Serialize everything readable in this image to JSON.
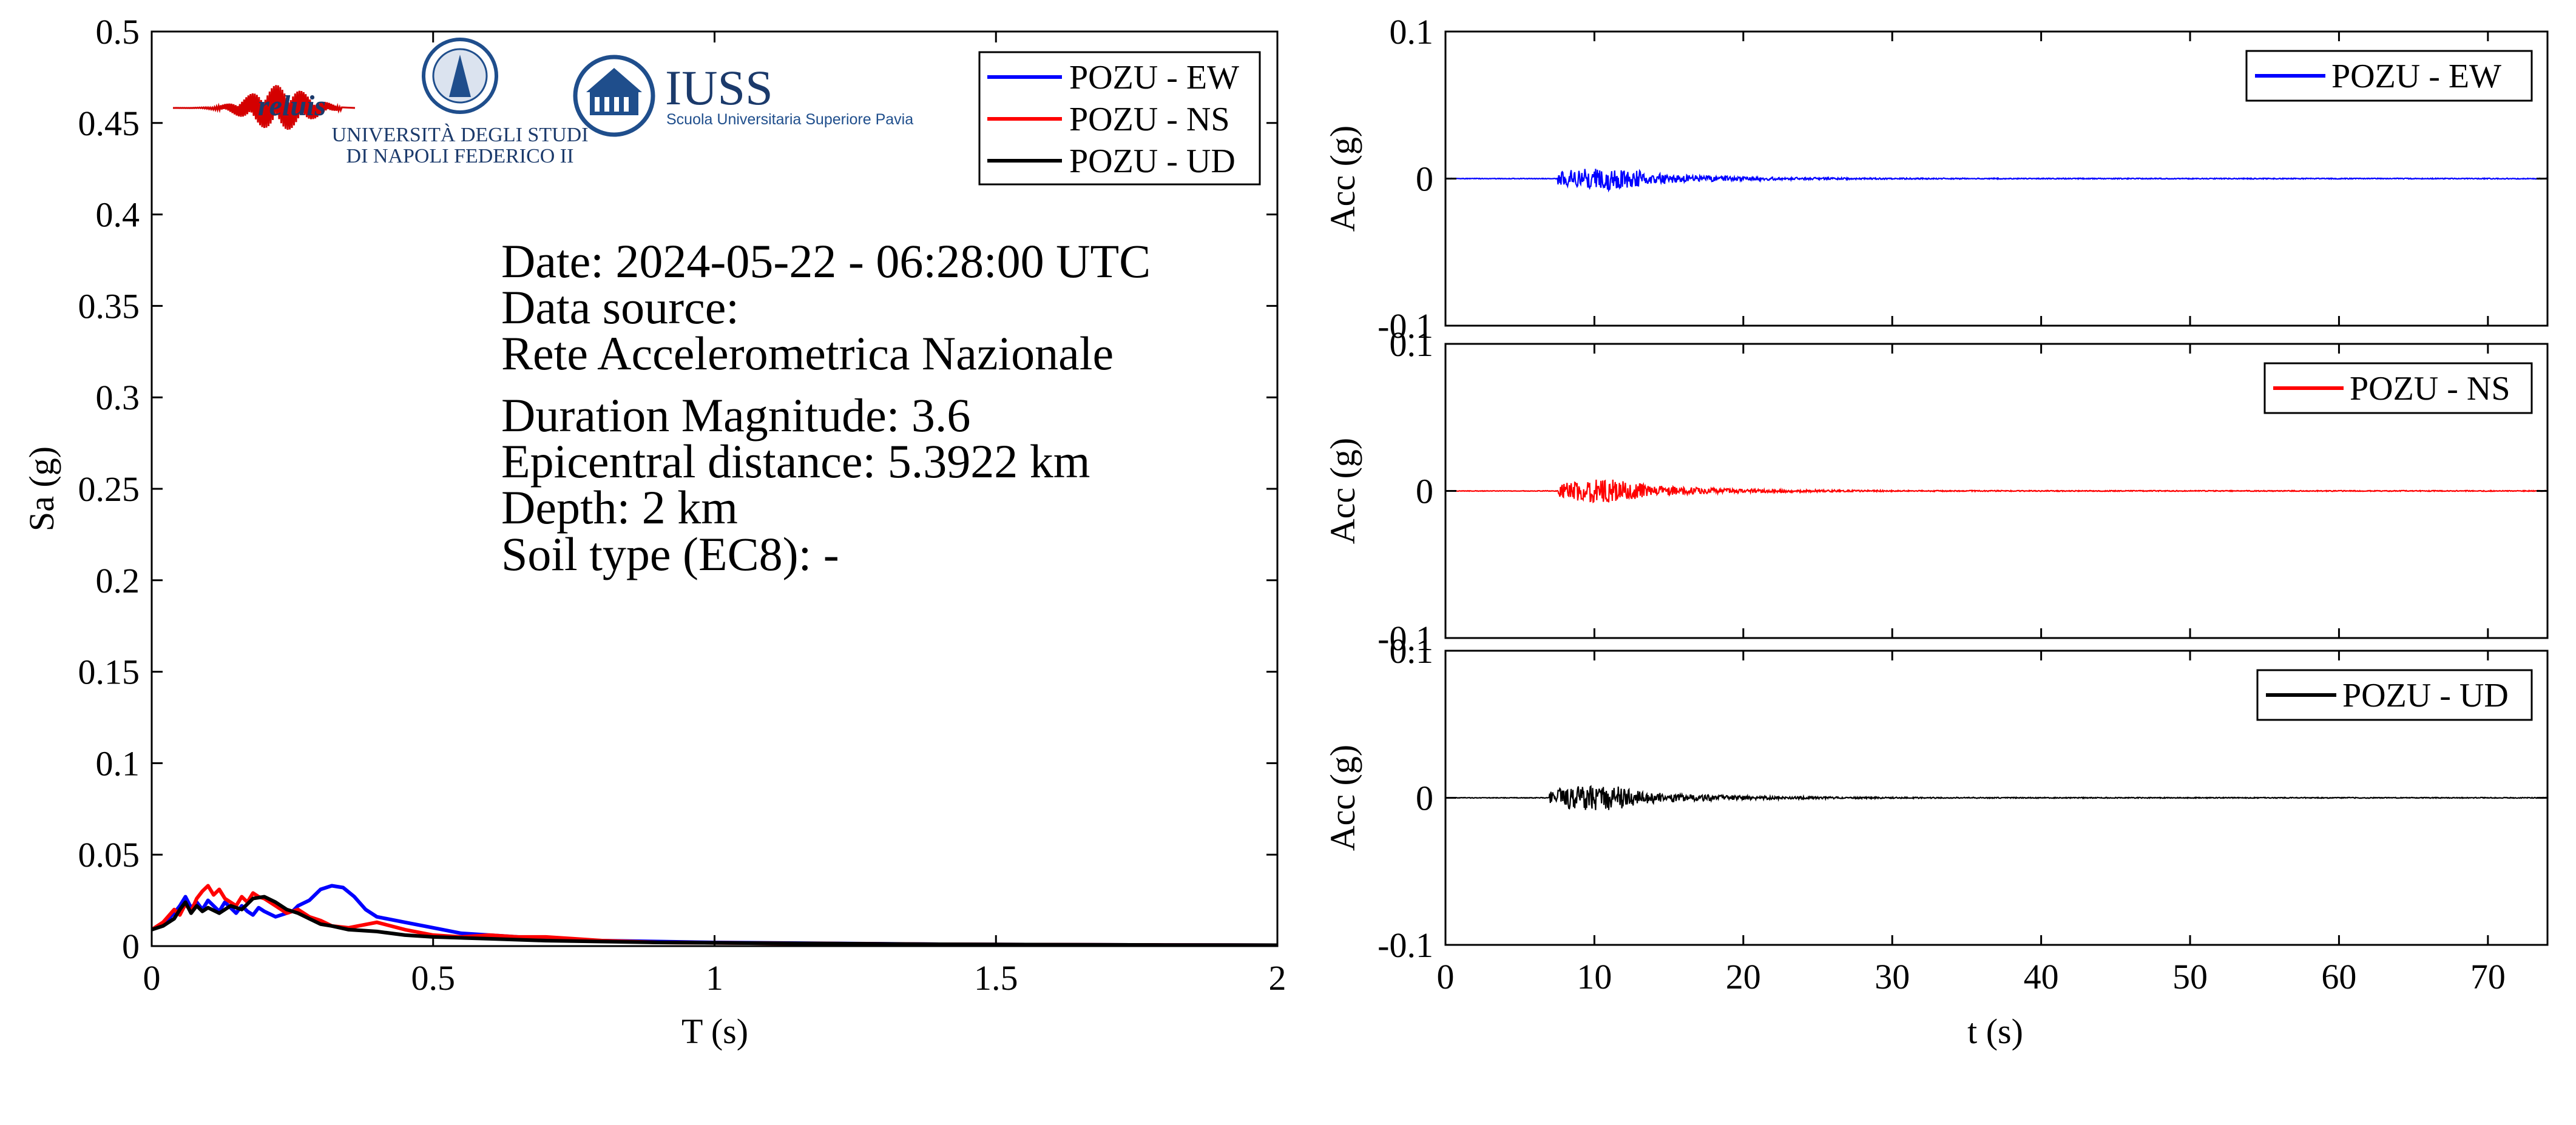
{
  "colors": {
    "ew": "#0000ff",
    "ns": "#ff0000",
    "ud": "#000000",
    "logo_blue": "#1f4e8c",
    "logo_red": "#d40000"
  },
  "logos": {
    "reluis": "reluis",
    "unina_line1": "UNIVERSITÀ DEGLI STUDI",
    "unina_line2": "DI NAPOLI FEDERICO II",
    "iuss_title": "IUSS",
    "iuss_sub": "Scuola Universitaria Superiore Pavia"
  },
  "info": {
    "date": "Date: 2024-05-22 - 06:28:00 UTC",
    "source_label": "Data source:",
    "source": "Rete Accelerometrica Nazionale",
    "magnitude": "Duration Magnitude: 3.6",
    "distance": "Epicentral distance: 5.3922 km",
    "depth": "Depth: 2 km",
    "soil": "Soil type (EC8): -"
  },
  "chart_data": [
    {
      "type": "line",
      "xlabel": "T (s)",
      "ylabel": "Sa (g)",
      "xlim": [
        0,
        2
      ],
      "ylim": [
        0,
        0.5
      ],
      "xticks": [
        "0",
        "0.5",
        "1",
        "1.5",
        "2"
      ],
      "yticks": [
        "0",
        "0.05",
        "0.1",
        "0.15",
        "0.2",
        "0.25",
        "0.3",
        "0.35",
        "0.4",
        "0.45",
        "0.5"
      ],
      "legend": "top-right",
      "series": [
        {
          "name": "POZU - EW",
          "color": "#0000ff",
          "x": [
            0,
            0.02,
            0.04,
            0.05,
            0.06,
            0.07,
            0.08,
            0.09,
            0.1,
            0.11,
            0.12,
            0.13,
            0.14,
            0.15,
            0.16,
            0.17,
            0.18,
            0.19,
            0.2,
            0.22,
            0.24,
            0.25,
            0.26,
            0.28,
            0.3,
            0.32,
            0.34,
            0.36,
            0.38,
            0.4,
            0.45,
            0.5,
            0.55,
            0.6,
            0.7,
            0.8,
            0.9,
            1.0,
            1.2,
            1.4,
            1.6,
            1.8,
            2.0
          ],
          "y": [
            0.009,
            0.012,
            0.018,
            0.022,
            0.027,
            0.021,
            0.024,
            0.02,
            0.025,
            0.022,
            0.019,
            0.024,
            0.021,
            0.018,
            0.022,
            0.019,
            0.017,
            0.021,
            0.019,
            0.016,
            0.018,
            0.019,
            0.022,
            0.025,
            0.031,
            0.033,
            0.032,
            0.027,
            0.02,
            0.016,
            0.013,
            0.01,
            0.007,
            0.006,
            0.004,
            0.003,
            0.0025,
            0.002,
            0.0015,
            0.001,
            0.0008,
            0.0006,
            0.0005
          ]
        },
        {
          "name": "POZU - NS",
          "color": "#ff0000",
          "x": [
            0,
            0.02,
            0.04,
            0.05,
            0.06,
            0.07,
            0.08,
            0.09,
            0.1,
            0.11,
            0.12,
            0.13,
            0.14,
            0.15,
            0.16,
            0.17,
            0.18,
            0.19,
            0.2,
            0.22,
            0.24,
            0.26,
            0.28,
            0.3,
            0.32,
            0.35,
            0.4,
            0.45,
            0.5,
            0.55,
            0.6,
            0.65,
            0.7,
            0.75,
            0.8,
            0.9,
            1.0,
            1.2,
            1.4,
            1.6,
            1.8,
            2.0
          ],
          "y": [
            0.009,
            0.013,
            0.02,
            0.017,
            0.023,
            0.019,
            0.026,
            0.03,
            0.033,
            0.028,
            0.031,
            0.026,
            0.024,
            0.022,
            0.027,
            0.024,
            0.029,
            0.027,
            0.026,
            0.022,
            0.018,
            0.02,
            0.016,
            0.014,
            0.011,
            0.01,
            0.013,
            0.009,
            0.006,
            0.005,
            0.006,
            0.005,
            0.005,
            0.004,
            0.003,
            0.002,
            0.0018,
            0.0014,
            0.001,
            0.0008,
            0.0006,
            0.0005
          ]
        },
        {
          "name": "POZU - UD",
          "color": "#000000",
          "x": [
            0,
            0.02,
            0.04,
            0.05,
            0.06,
            0.07,
            0.08,
            0.09,
            0.1,
            0.12,
            0.14,
            0.16,
            0.18,
            0.2,
            0.22,
            0.24,
            0.26,
            0.28,
            0.3,
            0.32,
            0.35,
            0.4,
            0.45,
            0.5,
            0.6,
            0.7,
            0.8,
            0.9,
            1.0,
            1.2,
            1.4,
            1.6,
            1.8,
            2.0
          ],
          "y": [
            0.009,
            0.011,
            0.015,
            0.02,
            0.024,
            0.018,
            0.022,
            0.019,
            0.021,
            0.018,
            0.022,
            0.02,
            0.026,
            0.027,
            0.024,
            0.02,
            0.018,
            0.015,
            0.012,
            0.011,
            0.009,
            0.008,
            0.006,
            0.005,
            0.004,
            0.003,
            0.0025,
            0.002,
            0.0018,
            0.0014,
            0.001,
            0.0008,
            0.0006,
            0.0005
          ]
        }
      ]
    },
    {
      "type": "line",
      "xlabel": "",
      "ylabel": "Acc (g)",
      "xlim": [
        0,
        74
      ],
      "ylim": [
        -0.1,
        0.1
      ],
      "yticks": [
        "-0.1",
        "0",
        "0.1"
      ],
      "legend": "top-right",
      "series": [
        {
          "name": "POZU - EW",
          "color": "#0000ff",
          "peak_abs": 0.008,
          "strong_motion_window": [
            7.5,
            13.5
          ]
        }
      ]
    },
    {
      "type": "line",
      "xlabel": "",
      "ylabel": "Acc (g)",
      "xlim": [
        0,
        74
      ],
      "ylim": [
        -0.1,
        0.1
      ],
      "yticks": [
        "-0.1",
        "0",
        "0.1"
      ],
      "legend": "top-right",
      "series": [
        {
          "name": "POZU - NS",
          "color": "#ff0000",
          "peak_abs": 0.008,
          "strong_motion_window": [
            7.5,
            13.5
          ]
        }
      ]
    },
    {
      "type": "line",
      "xlabel": "t (s)",
      "ylabel": "Acc (g)",
      "xlim": [
        0,
        74
      ],
      "ylim": [
        -0.1,
        0.1
      ],
      "xticks": [
        "0",
        "10",
        "20",
        "30",
        "40",
        "50",
        "60",
        "70"
      ],
      "yticks": [
        "-0.1",
        "0",
        "0.1"
      ],
      "legend": "top-right",
      "series": [
        {
          "name": "POZU - UD",
          "color": "#000000",
          "peak_abs": 0.009,
          "strong_motion_window": [
            7.0,
            13.0
          ]
        }
      ]
    }
  ]
}
